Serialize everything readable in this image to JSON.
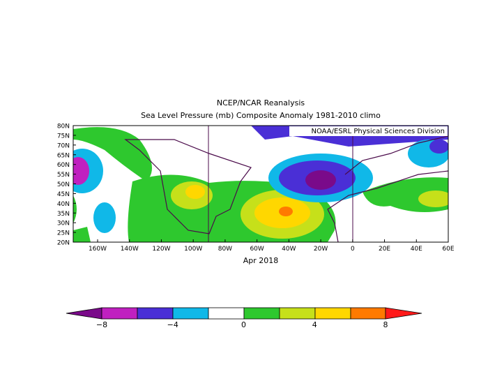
{
  "header": {
    "title": "NCEP/NCAR Reanalysis",
    "subtitle": "Sea Level Pressure (mb) Composite Anomaly 1981-2010 climo"
  },
  "map": {
    "credit": "NOAA/ESRL Physical Sciences Division",
    "lat_labels": [
      "80N",
      "75N",
      "70N",
      "65N",
      "60N",
      "55N",
      "50N",
      "45N",
      "40N",
      "35N",
      "30N",
      "25N",
      "20N"
    ],
    "lon_labels": [
      "160W",
      "140W",
      "120W",
      "100W",
      "80W",
      "60W",
      "40W",
      "20W",
      "0",
      "20E",
      "40E",
      "60E"
    ],
    "period": "Apr 2018"
  },
  "colorbar": {
    "labels": [
      "−8",
      "−4",
      "0",
      "4",
      "8"
    ]
  }
}
